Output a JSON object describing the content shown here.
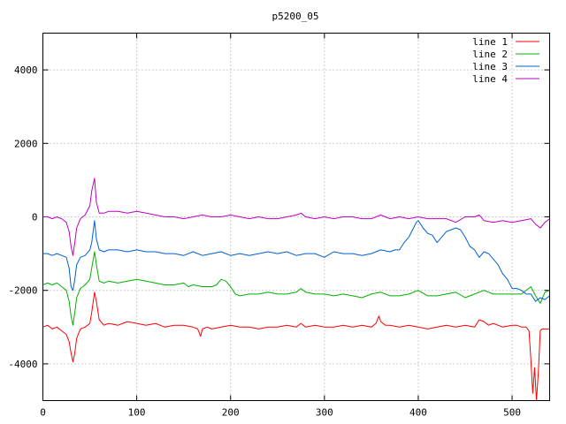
{
  "chart_data": {
    "type": "line",
    "title": "p5200_05",
    "xlabel": "",
    "ylabel": "",
    "xlim": [
      0,
      540
    ],
    "ylim": [
      -5000,
      5000
    ],
    "xticks": [
      0,
      100,
      200,
      300,
      400,
      500
    ],
    "yticks": [
      -4000,
      -2000,
      0,
      2000,
      4000
    ],
    "grid": true,
    "legend_position": "top-right",
    "series": [
      {
        "name": "line 1",
        "color": "#ff0000",
        "x": [
          0,
          5,
          10,
          15,
          20,
          25,
          28,
          30,
          32,
          34,
          36,
          40,
          45,
          50,
          52,
          55,
          57,
          60,
          65,
          70,
          80,
          90,
          100,
          110,
          120,
          130,
          140,
          150,
          160,
          165,
          168,
          170,
          175,
          180,
          190,
          200,
          210,
          220,
          230,
          240,
          250,
          260,
          270,
          275,
          280,
          290,
          300,
          310,
          320,
          330,
          340,
          350,
          355,
          358,
          360,
          365,
          370,
          380,
          390,
          400,
          410,
          420,
          430,
          440,
          450,
          460,
          465,
          470,
          475,
          480,
          490,
          500,
          505,
          510,
          515,
          518,
          520,
          522,
          524,
          526,
          528,
          530,
          532,
          535,
          540
        ],
        "y": [
          -3000,
          -2950,
          -3050,
          -3000,
          -3100,
          -3200,
          -3400,
          -3700,
          -3950,
          -3700,
          -3300,
          -3050,
          -3000,
          -2900,
          -2600,
          -2050,
          -2300,
          -2800,
          -2950,
          -2900,
          -2950,
          -2850,
          -2900,
          -2950,
          -2900,
          -3000,
          -2950,
          -2950,
          -3000,
          -3050,
          -3250,
          -3050,
          -3000,
          -3050,
          -3000,
          -2950,
          -3000,
          -3000,
          -3050,
          -3000,
          -3000,
          -2950,
          -3000,
          -2900,
          -3000,
          -2950,
          -3000,
          -3000,
          -2950,
          -3000,
          -2950,
          -3000,
          -2900,
          -2700,
          -2850,
          -2950,
          -2950,
          -3000,
          -2950,
          -3000,
          -3050,
          -3000,
          -2950,
          -3000,
          -2950,
          -3000,
          -2800,
          -2850,
          -2950,
          -2900,
          -3000,
          -2950,
          -2950,
          -3000,
          -3000,
          -3100,
          -3900,
          -4800,
          -4100,
          -5000,
          -4200,
          -3100,
          -3050,
          -3050,
          -3050
        ]
      },
      {
        "name": "line 2",
        "color": "#00b000",
        "x": [
          0,
          5,
          10,
          15,
          20,
          25,
          28,
          30,
          32,
          34,
          36,
          40,
          45,
          50,
          52,
          55,
          57,
          60,
          65,
          70,
          80,
          90,
          100,
          110,
          120,
          130,
          140,
          150,
          155,
          160,
          170,
          180,
          185,
          190,
          195,
          200,
          205,
          210,
          220,
          230,
          240,
          250,
          260,
          270,
          275,
          280,
          290,
          300,
          310,
          320,
          330,
          340,
          350,
          360,
          370,
          380,
          390,
          400,
          410,
          420,
          430,
          440,
          450,
          460,
          470,
          475,
          480,
          490,
          500,
          510,
          520,
          525,
          530,
          535,
          540
        ],
        "y": [
          -1850,
          -1800,
          -1850,
          -1800,
          -1900,
          -2000,
          -2300,
          -2700,
          -2950,
          -2600,
          -2200,
          -1950,
          -1850,
          -1700,
          -1400,
          -950,
          -1300,
          -1750,
          -1800,
          -1750,
          -1800,
          -1750,
          -1700,
          -1750,
          -1800,
          -1850,
          -1850,
          -1800,
          -1900,
          -1850,
          -1900,
          -1900,
          -1850,
          -1700,
          -1750,
          -1900,
          -2100,
          -2150,
          -2100,
          -2100,
          -2050,
          -2100,
          -2100,
          -2050,
          -1950,
          -2050,
          -2100,
          -2100,
          -2150,
          -2100,
          -2150,
          -2200,
          -2100,
          -2050,
          -2150,
          -2150,
          -2100,
          -2000,
          -2150,
          -2150,
          -2100,
          -2050,
          -2200,
          -2100,
          -2000,
          -2050,
          -2100,
          -2100,
          -2100,
          -2100,
          -1900,
          -2150,
          -2350,
          -2050,
          -2000
        ]
      },
      {
        "name": "line 3",
        "color": "#0060d0",
        "x": [
          0,
          5,
          10,
          15,
          20,
          25,
          28,
          30,
          32,
          34,
          36,
          40,
          45,
          50,
          52,
          55,
          57,
          60,
          65,
          70,
          80,
          90,
          100,
          110,
          120,
          130,
          140,
          150,
          160,
          170,
          180,
          190,
          200,
          210,
          220,
          230,
          240,
          250,
          260,
          270,
          280,
          290,
          300,
          310,
          320,
          330,
          340,
          350,
          360,
          370,
          375,
          380,
          385,
          390,
          395,
          398,
          400,
          405,
          410,
          415,
          420,
          425,
          430,
          435,
          440,
          445,
          450,
          455,
          460,
          465,
          470,
          475,
          480,
          485,
          490,
          495,
          500,
          505,
          510,
          515,
          520,
          525,
          530,
          535,
          540
        ],
        "y": [
          -1000,
          -1000,
          -1050,
          -1000,
          -1050,
          -1100,
          -1400,
          -1900,
          -2000,
          -1700,
          -1300,
          -1100,
          -1050,
          -900,
          -700,
          -100,
          -600,
          -900,
          -950,
          -900,
          -900,
          -950,
          -900,
          -950,
          -950,
          -1000,
          -1000,
          -1050,
          -950,
          -1050,
          -1000,
          -950,
          -1050,
          -1000,
          -1050,
          -1000,
          -950,
          -1000,
          -950,
          -1050,
          -1000,
          -1000,
          -1100,
          -950,
          -1000,
          -1000,
          -1050,
          -1000,
          -900,
          -950,
          -900,
          -900,
          -700,
          -550,
          -300,
          -150,
          -100,
          -300,
          -450,
          -500,
          -700,
          -550,
          -400,
          -350,
          -300,
          -350,
          -550,
          -800,
          -900,
          -1100,
          -950,
          -1000,
          -1150,
          -1300,
          -1550,
          -1700,
          -1950,
          -1950,
          -2000,
          -2100,
          -2100,
          -2300,
          -2200,
          -2250,
          -2150
        ]
      },
      {
        "name": "line 4",
        "color": "#c000c0",
        "x": [
          0,
          5,
          10,
          15,
          20,
          25,
          28,
          30,
          32,
          34,
          36,
          40,
          45,
          50,
          52,
          55,
          57,
          60,
          65,
          70,
          80,
          90,
          100,
          110,
          120,
          130,
          140,
          150,
          160,
          170,
          180,
          190,
          200,
          210,
          220,
          230,
          240,
          250,
          260,
          270,
          275,
          280,
          290,
          300,
          310,
          320,
          330,
          340,
          350,
          360,
          370,
          380,
          390,
          400,
          410,
          420,
          430,
          440,
          450,
          460,
          465,
          470,
          480,
          490,
          500,
          510,
          520,
          525,
          530,
          535,
          540
        ],
        "y": [
          0,
          0,
          -50,
          0,
          -50,
          -150,
          -400,
          -800,
          -1050,
          -700,
          -300,
          -50,
          50,
          300,
          700,
          1050,
          400,
          100,
          100,
          150,
          150,
          100,
          150,
          100,
          50,
          0,
          0,
          -50,
          0,
          50,
          0,
          0,
          50,
          0,
          -50,
          0,
          -50,
          -50,
          0,
          50,
          100,
          0,
          -50,
          0,
          -50,
          0,
          0,
          -50,
          -50,
          50,
          -50,
          0,
          -50,
          0,
          -50,
          -50,
          -50,
          -150,
          0,
          0,
          50,
          -100,
          -150,
          -100,
          -150,
          -100,
          -50,
          -200,
          -300,
          -150,
          -50
        ]
      }
    ]
  }
}
